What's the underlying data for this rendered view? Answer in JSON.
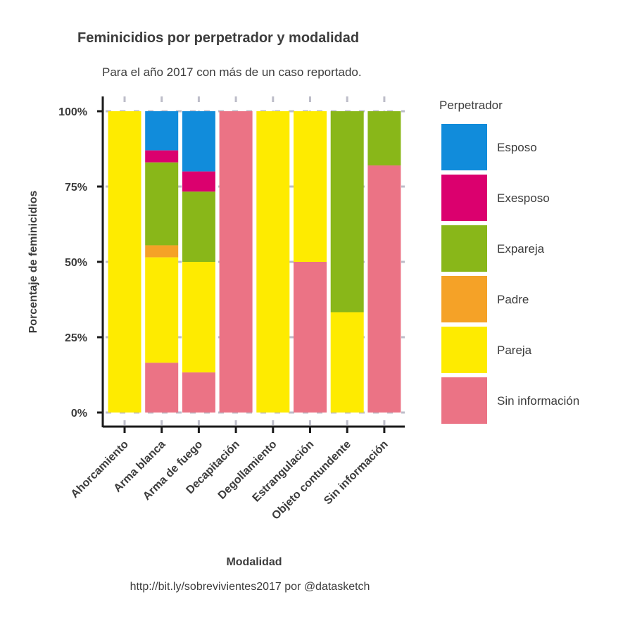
{
  "chart_data": {
    "type": "bar",
    "stacked": true,
    "normalized": true,
    "title": "Feminicidios por perpetrador y modalidad",
    "subtitle": "Para el año 2017 con más de un caso reportado.",
    "caption": "http://bit.ly/sobrevivientes2017 por @datasketch",
    "xlabel": "Modalidad",
    "ylabel": "Porcentaje de feminicidios",
    "ylim": [
      0,
      1
    ],
    "yticks": [
      0,
      0.25,
      0.5,
      0.75,
      1.0
    ],
    "yticklabels": [
      "0%",
      "25%",
      "50%",
      "75%",
      "100%"
    ],
    "grid": true,
    "legend_title": "Perpetrador",
    "legend_position": "right",
    "categories": [
      "Ahorcamiento",
      "Arma blanca",
      "Arma de fuego",
      "Decapitación",
      "Degollamiento",
      "Estrangulación",
      "Objeto contundente",
      "Sin información"
    ],
    "series": [
      {
        "name": "Esposo",
        "color": "#118CDB",
        "values": [
          0,
          0.13,
          0.2,
          0,
          0,
          0,
          0,
          0
        ]
      },
      {
        "name": "Exesposo",
        "color": "#DB006E",
        "values": [
          0,
          0.04,
          0.067,
          0,
          0,
          0,
          0,
          0
        ]
      },
      {
        "name": "Expareja",
        "color": "#89B719",
        "values": [
          0,
          0.275,
          0.233,
          0,
          0,
          0,
          0.667,
          0.18
        ]
      },
      {
        "name": "Padre",
        "color": "#F5A227",
        "values": [
          0,
          0.04,
          0,
          0,
          0,
          0,
          0,
          0
        ]
      },
      {
        "name": "Pareja",
        "color": "#FEEB00",
        "values": [
          1.0,
          0.35,
          0.367,
          0,
          1.0,
          0.5,
          0.333,
          0
        ]
      },
      {
        "name": "Sin información",
        "color": "#EB7385",
        "values": [
          0,
          0.165,
          0.133,
          1.0,
          0,
          0.5,
          0,
          0.82
        ]
      }
    ]
  }
}
